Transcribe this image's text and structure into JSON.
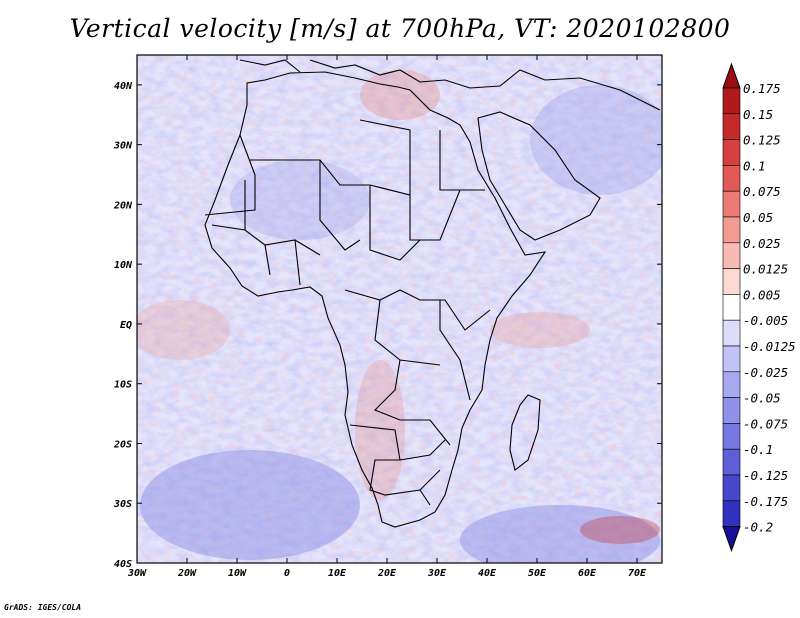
{
  "title": "Vertical velocity [m/s] at 700hPa, VT: 2020102800",
  "credit": "GrADS: IGES/COLA",
  "map": {
    "lon_range": [
      -30,
      75
    ],
    "lat_range": [
      -40,
      45
    ],
    "lon_ticks": [
      {
        "value": -30,
        "label": "30W"
      },
      {
        "value": -20,
        "label": "20W"
      },
      {
        "value": -10,
        "label": "10W"
      },
      {
        "value": 0,
        "label": "0"
      },
      {
        "value": 10,
        "label": "10E"
      },
      {
        "value": 20,
        "label": "20E"
      },
      {
        "value": 30,
        "label": "30E"
      },
      {
        "value": 40,
        "label": "40E"
      },
      {
        "value": 50,
        "label": "50E"
      },
      {
        "value": 60,
        "label": "60E"
      },
      {
        "value": 70,
        "label": "70E"
      }
    ],
    "lat_ticks": [
      {
        "value": 40,
        "label": "40N"
      },
      {
        "value": 30,
        "label": "30N"
      },
      {
        "value": 20,
        "label": "20N"
      },
      {
        "value": 10,
        "label": "10N"
      },
      {
        "value": 0,
        "label": "EQ"
      },
      {
        "value": -10,
        "label": "10S"
      },
      {
        "value": -20,
        "label": "20S"
      },
      {
        "value": -30,
        "label": "30S"
      },
      {
        "value": -40,
        "label": "40S"
      }
    ]
  },
  "colorbar": {
    "levels": [
      {
        "label": "0.175",
        "color": "#b0191c"
      },
      {
        "label": "0.15",
        "color": "#c52a2a"
      },
      {
        "label": "0.125",
        "color": "#d63f3f"
      },
      {
        "label": "0.1",
        "color": "#e25a58"
      },
      {
        "label": "0.075",
        "color": "#ec7a74"
      },
      {
        "label": "0.05",
        "color": "#f39b93"
      },
      {
        "label": "0.025",
        "color": "#f8bcb4"
      },
      {
        "label": "0.0125",
        "color": "#fcdad4"
      },
      {
        "label": "0.005",
        "color": "#ffffff"
      },
      {
        "label": "-0.005",
        "color": "#dcdcfb"
      },
      {
        "label": "-0.0125",
        "color": "#c2c2f6"
      },
      {
        "label": "-0.025",
        "color": "#a9a9f1"
      },
      {
        "label": "-0.05",
        "color": "#9090ea"
      },
      {
        "label": "-0.075",
        "color": "#7777e2"
      },
      {
        "label": "-0.1",
        "color": "#5e5ed8"
      },
      {
        "label": "-0.125",
        "color": "#4747cc"
      },
      {
        "label": "-0.175",
        "color": "#3131be"
      },
      {
        "label": "-0.2",
        "color": "#1f1fa8"
      }
    ],
    "top_extend_color": "#9a0d12",
    "bottom_extend_color": "#1a0e96"
  }
}
